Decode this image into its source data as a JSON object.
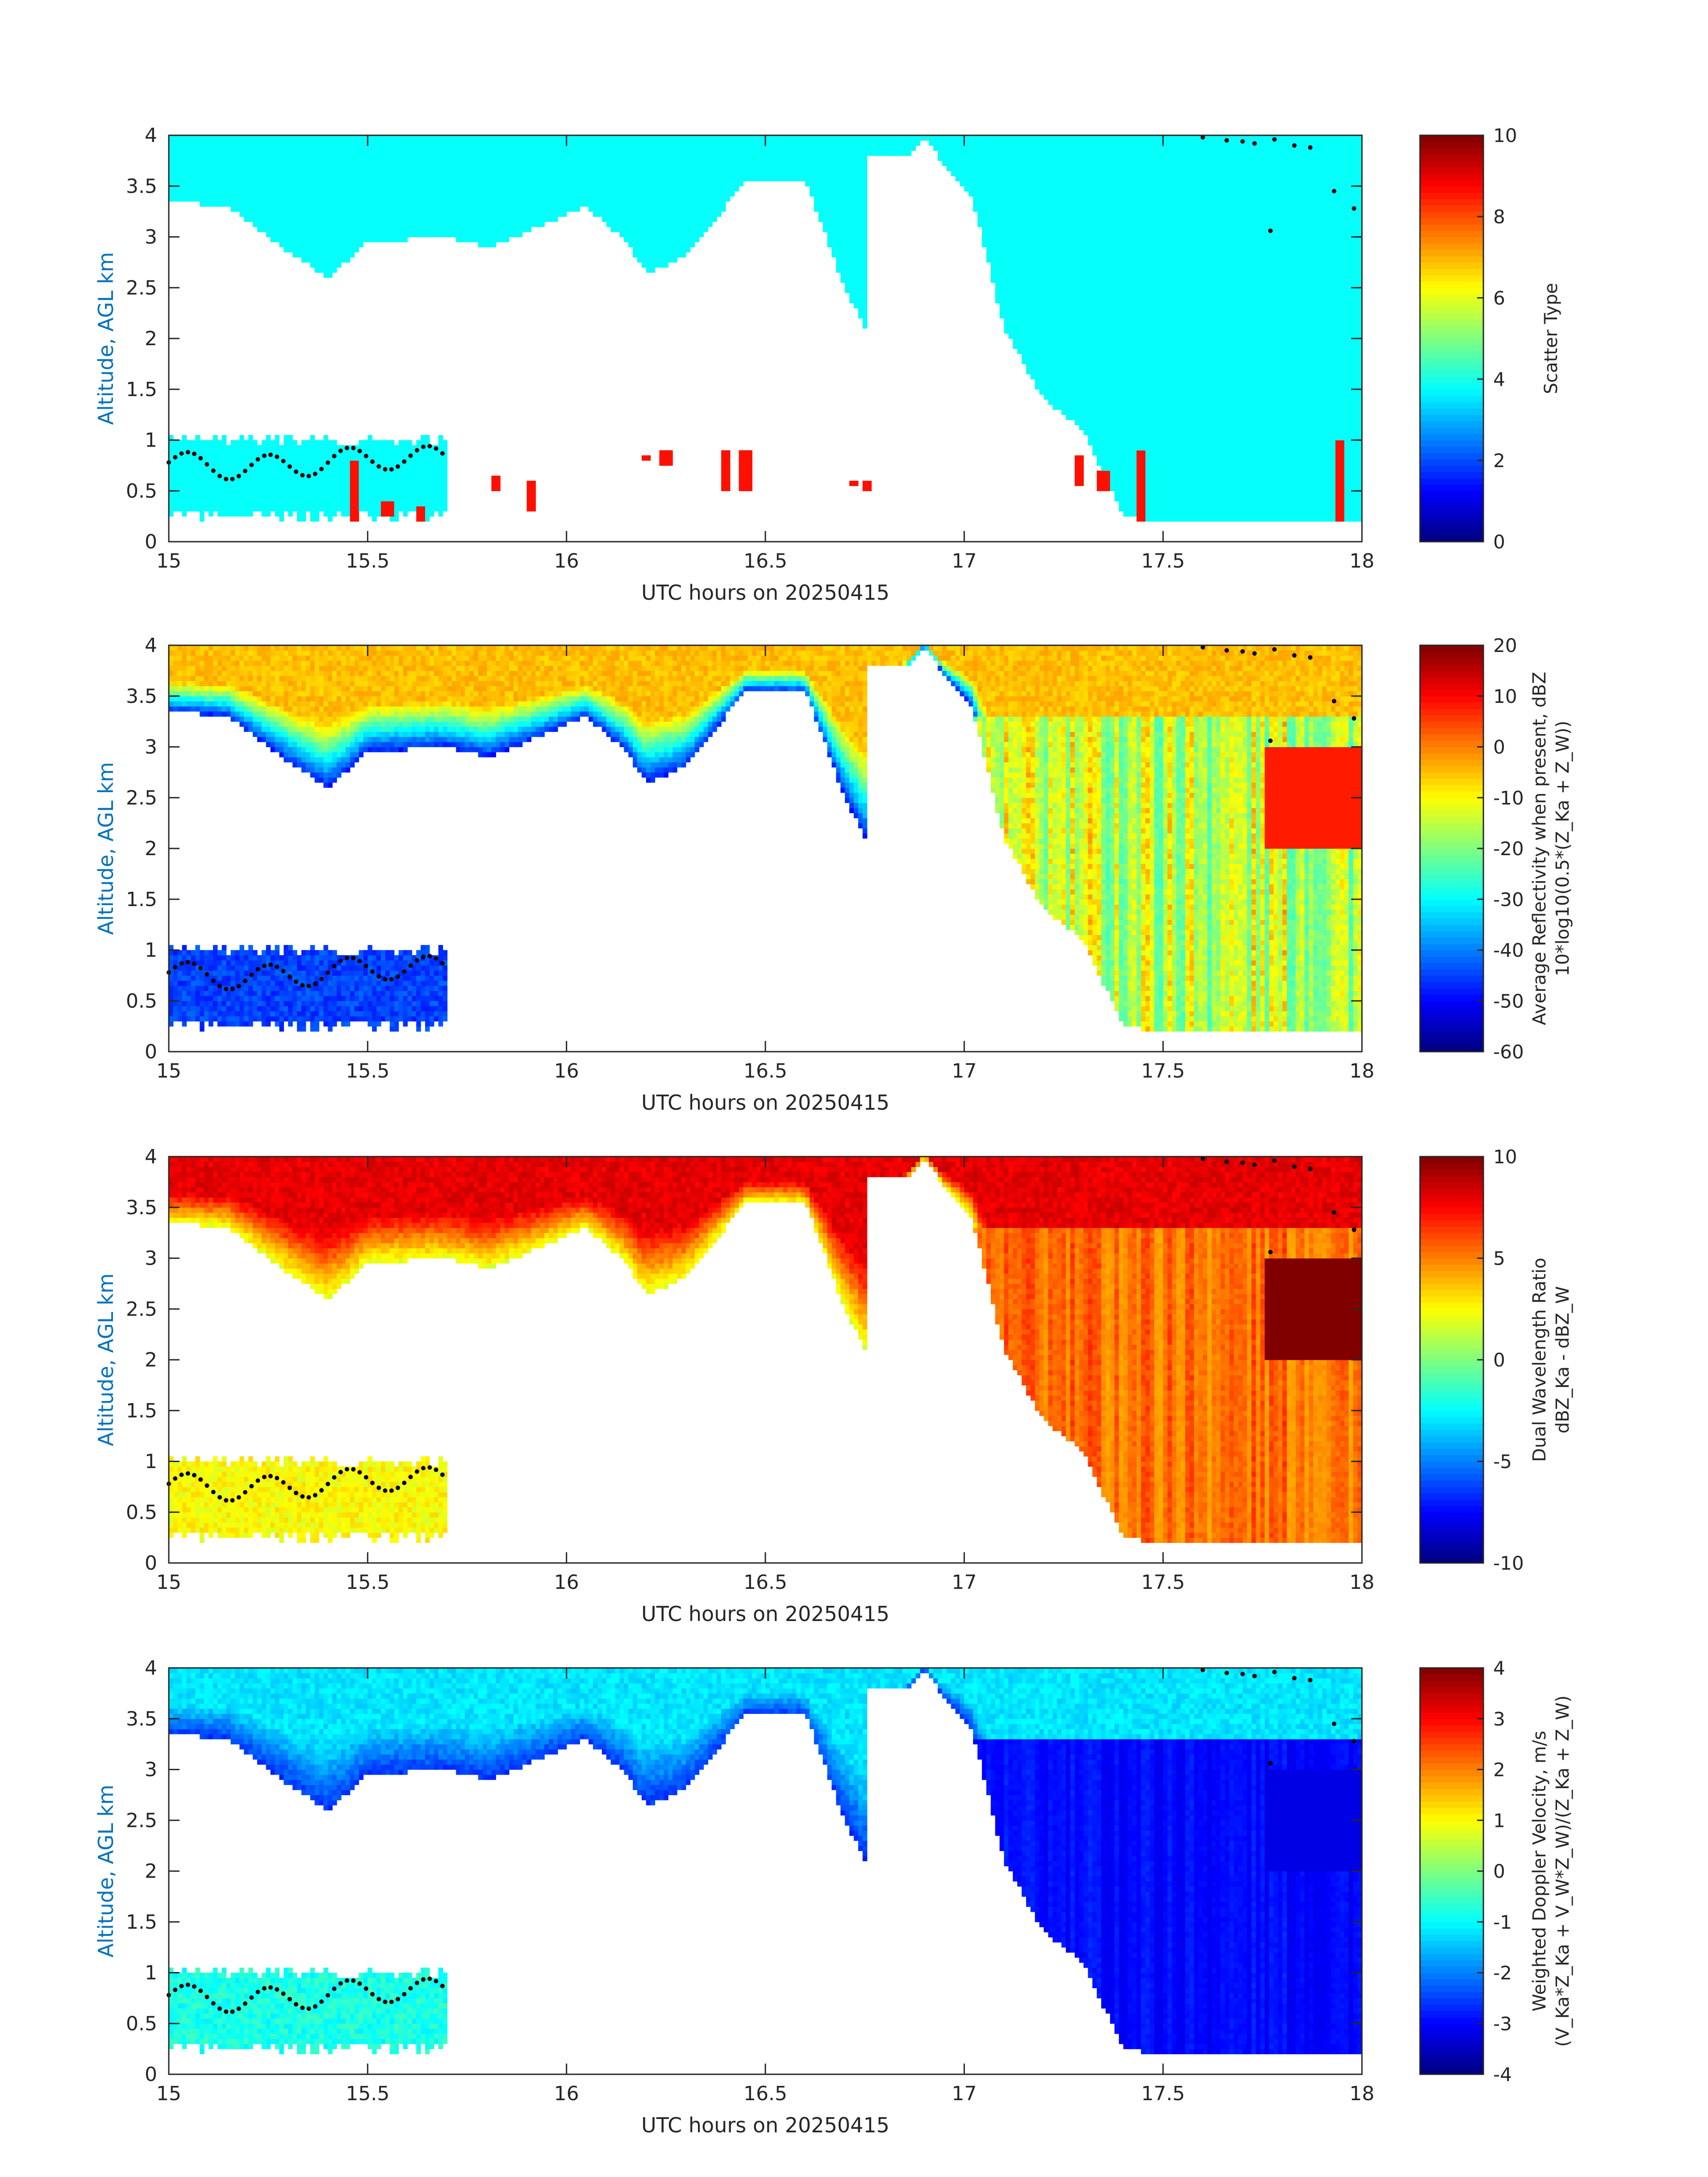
{
  "figure": {
    "background": "#ffffff",
    "axis_color": "#262626",
    "label_color": "#0072BD",
    "colormap": "jet"
  },
  "chart_data": [
    {
      "type": "heatmap",
      "panel": 1,
      "title": "",
      "xlabel": "UTC hours on 20250415",
      "ylabel": "Altitude, AGL km",
      "xlim": [
        15,
        18
      ],
      "ylim": [
        0,
        4
      ],
      "xticks": [
        "15",
        "15.5",
        "16",
        "16.5",
        "17",
        "17.5",
        "18"
      ],
      "yticks": [
        "0",
        "0.5",
        "1",
        "1.5",
        "2",
        "2.5",
        "3",
        "3.5",
        "4"
      ],
      "colorbar": {
        "label": [
          "Scatter Type"
        ],
        "range": [
          0,
          10
        ],
        "ticks": [
          "0",
          "2",
          "4",
          "6",
          "8",
          "10"
        ]
      },
      "dominant_value": 3.8,
      "sparse_value": 8.6,
      "regions": {
        "upper_cloud": {
          "value": 3.8,
          "top_km": 4.0,
          "base_km_by_hour": [
            [
              15.0,
              3.35
            ],
            [
              15.15,
              3.3
            ],
            [
              15.3,
              2.85
            ],
            [
              15.4,
              2.6
            ],
            [
              15.5,
              2.95
            ],
            [
              15.7,
              3.0
            ],
            [
              15.8,
              2.9
            ],
            [
              15.9,
              3.05
            ],
            [
              16.05,
              3.3
            ],
            [
              16.15,
              2.95
            ],
            [
              16.2,
              2.65
            ],
            [
              16.3,
              2.8
            ],
            [
              16.45,
              3.55
            ],
            [
              16.6,
              3.55
            ],
            [
              16.7,
              2.5
            ],
            [
              16.75,
              2.1
            ],
            [
              16.83,
              3.6
            ],
            [
              16.9,
              4.0
            ],
            [
              16.95,
              3.7
            ],
            [
              17.02,
              3.4
            ],
            [
              17.1,
              2.1
            ],
            [
              17.2,
              1.4
            ],
            [
              17.3,
              1.1
            ],
            [
              17.4,
              0.25
            ],
            [
              17.5,
              0.2
            ],
            [
              17.6,
              0.2
            ],
            [
              17.8,
              0.2
            ],
            [
              18.0,
              0.2
            ]
          ]
        },
        "low_cloud": {
          "value": 3.8,
          "x_range": [
            15.0,
            15.7
          ],
          "alt_range_km": [
            0.2,
            1.05
          ]
        },
        "hydrometeor_columns": [
          [
            15.47,
            0.2,
            0.8
          ],
          [
            15.55,
            0.25,
            0.4
          ],
          [
            15.63,
            0.2,
            0.35
          ],
          [
            15.82,
            0.5,
            0.65
          ],
          [
            15.91,
            0.3,
            0.6
          ],
          [
            16.2,
            0.78,
            0.85
          ],
          [
            16.25,
            0.75,
            0.9
          ],
          [
            16.4,
            0.5,
            0.9
          ],
          [
            16.45,
            0.5,
            0.9
          ],
          [
            16.72,
            0.55,
            0.6
          ],
          [
            16.76,
            0.5,
            0.6
          ],
          [
            17.29,
            0.55,
            0.85
          ],
          [
            17.35,
            0.5,
            0.7
          ],
          [
            17.44,
            0.2,
            0.9
          ],
          [
            17.94,
            0.2,
            1.0
          ]
        ]
      }
    },
    {
      "type": "heatmap",
      "panel": 2,
      "title": "",
      "xlabel": "UTC hours on 20250415",
      "ylabel": "Altitude, AGL km",
      "xlim": [
        15,
        18
      ],
      "ylim": [
        0,
        4
      ],
      "xticks": [
        "15",
        "15.5",
        "16",
        "16.5",
        "17",
        "17.5",
        "18"
      ],
      "yticks": [
        "0",
        "0.5",
        "1",
        "1.5",
        "2",
        "2.5",
        "3",
        "3.5",
        "4"
      ],
      "colorbar": {
        "label": [
          "Average Reflectivity when present, dBZ",
          "10*log10(0.5*(Z_Ka + Z_W))"
        ],
        "range": [
          -60,
          20
        ],
        "ticks": [
          "-60",
          "-50",
          "-40",
          "-30",
          "-20",
          "-10",
          "0",
          "10",
          "20"
        ]
      },
      "value_profile": {
        "cloud_top_value": -5,
        "cloud_base_value": -48,
        "low_cloud_value": -45,
        "deep_column_value_range": [
          -35,
          0
        ],
        "strong_core_value": 8
      }
    },
    {
      "type": "heatmap",
      "panel": 3,
      "title": "",
      "xlabel": "UTC hours on 20250415",
      "ylabel": "Altitude, AGL km",
      "xlim": [
        15,
        18
      ],
      "ylim": [
        0,
        4
      ],
      "xticks": [
        "15",
        "15.5",
        "16",
        "16.5",
        "17",
        "17.5",
        "18"
      ],
      "yticks": [
        "0",
        "0.5",
        "1",
        "1.5",
        "2",
        "2.5",
        "3",
        "3.5",
        "4"
      ],
      "colorbar": {
        "label": [
          "Dual Wavelength Ratio",
          "dBZ_Ka - dBZ_W"
        ],
        "range": [
          -10,
          10
        ],
        "ticks": [
          "-10",
          "-5",
          "0",
          "5",
          "10"
        ]
      },
      "value_profile": {
        "cloud_top_value": 8,
        "cloud_base_value": 2,
        "low_cloud_value": 2.5,
        "deep_column_value_range": [
          3,
          7
        ],
        "strong_core_value": 10
      }
    },
    {
      "type": "heatmap",
      "panel": 4,
      "title": "",
      "xlabel": "UTC hours on 20250415",
      "ylabel": "Altitude, AGL km",
      "xlim": [
        15,
        18
      ],
      "ylim": [
        0,
        4
      ],
      "xticks": [
        "15",
        "15.5",
        "16",
        "16.5",
        "17",
        "17.5",
        "18"
      ],
      "yticks": [
        "0",
        "0.5",
        "1",
        "1.5",
        "2",
        "2.5",
        "3",
        "3.5",
        "4"
      ],
      "colorbar": {
        "label": [
          "Weighted Doppler Velocity, m/s",
          "(V_Ka*Z_Ka + V_W*Z_W)/(Z_Ka + Z_W)"
        ],
        "range": [
          -4,
          4
        ],
        "ticks": [
          "-4",
          "-3",
          "-2",
          "-1",
          "0",
          "1",
          "2",
          "3",
          "4"
        ]
      },
      "value_profile": {
        "cloud_top_value": -1.2,
        "cloud_base_value": -2.6,
        "low_cloud_value": -0.8,
        "deep_column_value_range": [
          -3.4,
          -2.6
        ],
        "strong_core_value": -3.2
      }
    }
  ]
}
